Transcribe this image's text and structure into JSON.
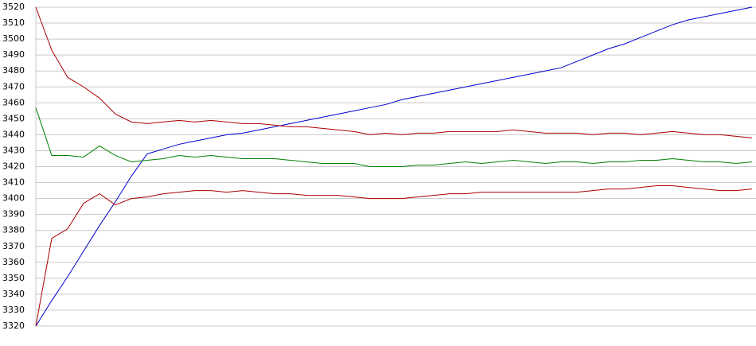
{
  "chart_data": {
    "type": "line",
    "ylim": [
      3320,
      3520
    ],
    "yticks": [
      3320,
      3330,
      3340,
      3350,
      3360,
      3370,
      3380,
      3390,
      3400,
      3410,
      3420,
      3430,
      3440,
      3450,
      3460,
      3470,
      3480,
      3490,
      3500,
      3510,
      3520
    ],
    "grid": true,
    "series": [
      {
        "color": "#0000cc",
        "values": [
          3320,
          3336,
          3351,
          3367,
          3383,
          3398,
          3414,
          3428,
          3431,
          3434,
          3436,
          3438,
          3440,
          3441,
          3443,
          3445,
          3447,
          3449,
          3451,
          3453,
          3455,
          3457,
          3459,
          3462,
          3464,
          3466,
          3468,
          3470,
          3472,
          3474,
          3476,
          3478,
          3480,
          3482,
          3486,
          3490,
          3494,
          3497,
          3501,
          3505,
          3509,
          3512,
          3514,
          3516,
          3518,
          3520
        ]
      },
      {
        "color": "#aa0000",
        "values": [
          3520,
          3493,
          3476,
          3470,
          3463,
          3453,
          3448,
          3447,
          3448,
          3449,
          3448,
          3449,
          3448,
          3447,
          3447,
          3446,
          3445,
          3445,
          3444,
          3443,
          3442,
          3440,
          3441,
          3440,
          3441,
          3441,
          3442,
          3442,
          3442,
          3442,
          3443,
          3442,
          3441,
          3441,
          3441,
          3440,
          3441,
          3441,
          3440,
          3441,
          3442,
          3441,
          3440,
          3440,
          3439,
          3438
        ]
      },
      {
        "color": "#008000",
        "values": [
          3457,
          3427,
          3427,
          3426,
          3433,
          3427,
          3423,
          3424,
          3425,
          3427,
          3426,
          3427,
          3426,
          3425,
          3425,
          3425,
          3424,
          3423,
          3422,
          3422,
          3422,
          3420,
          3420,
          3420,
          3421,
          3421,
          3422,
          3423,
          3422,
          3423,
          3424,
          3423,
          3422,
          3423,
          3423,
          3422,
          3423,
          3423,
          3424,
          3424,
          3425,
          3424,
          3423,
          3423,
          3422,
          3423
        ]
      },
      {
        "color": "#aa0000",
        "values": [
          3320,
          3375,
          3381,
          3397,
          3403,
          3396,
          3400,
          3401,
          3403,
          3404,
          3405,
          3405,
          3404,
          3405,
          3404,
          3403,
          3403,
          3402,
          3402,
          3402,
          3401,
          3400,
          3400,
          3400,
          3401,
          3402,
          3403,
          3403,
          3404,
          3404,
          3404,
          3404,
          3404,
          3404,
          3404,
          3405,
          3406,
          3406,
          3407,
          3408,
          3408,
          3407,
          3406,
          3405,
          3405,
          3406
        ]
      }
    ]
  }
}
